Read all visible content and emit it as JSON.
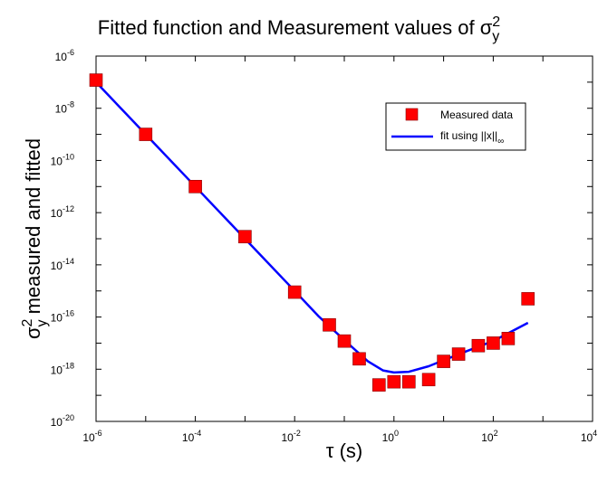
{
  "chart_data": {
    "type": "scatter",
    "title": "Fitted function and Measurement values of σ",
    "title_symbol_sup": "2",
    "title_symbol_sub": "y",
    "xlabel": "τ (s)",
    "ylabel_prefix": "σ",
    "ylabel_sup": "2",
    "ylabel_sub": "y",
    "ylabel_suffix": " measured and fitted",
    "x_scale": "log",
    "y_scale": "log",
    "xlim_exp": [
      -6,
      4
    ],
    "ylim_exp": [
      -20,
      -6
    ],
    "x_ticks": [
      {
        "base": "10",
        "exp": "-6"
      },
      {
        "base": "10",
        "exp": "-4"
      },
      {
        "base": "10",
        "exp": "-2"
      },
      {
        "base": "10",
        "exp": "0"
      },
      {
        "base": "10",
        "exp": "2"
      },
      {
        "base": "10",
        "exp": "4"
      }
    ],
    "y_ticks": [
      {
        "base": "10",
        "exp": "-6"
      },
      {
        "base": "10",
        "exp": "-8"
      },
      {
        "base": "10",
        "exp": "-10"
      },
      {
        "base": "10",
        "exp": "-12"
      },
      {
        "base": "10",
        "exp": "-14"
      },
      {
        "base": "10",
        "exp": "-16"
      },
      {
        "base": "10",
        "exp": "-18"
      },
      {
        "base": "10",
        "exp": "-20"
      }
    ],
    "grid": false,
    "legend_position": "top-right",
    "series": [
      {
        "name": "Measured data",
        "kind": "markers",
        "marker": "square",
        "color": "#ff0000",
        "x": [
          1e-06,
          1e-05,
          0.0001,
          0.001,
          0.01,
          0.05,
          0.1,
          0.2,
          0.5,
          1,
          2,
          5,
          10,
          20,
          50,
          100,
          200,
          500
        ],
        "y": [
          1.2e-07,
          1e-09,
          1e-11,
          1.2e-13,
          9e-16,
          5e-17,
          1.2e-17,
          2.5e-18,
          2.5e-19,
          3.3e-19,
          3.3e-19,
          4e-19,
          2e-18,
          3.8e-18,
          8e-18,
          1e-17,
          1.5e-17,
          5e-16
        ]
      },
      {
        "name": "fit using ||x||∞",
        "legend_main": "fit using ||x||",
        "legend_sub": "∞",
        "kind": "line",
        "color": "#0000ff",
        "x": [
          1e-06,
          1e-05,
          0.0001,
          0.001,
          0.01,
          0.03,
          0.1,
          0.3,
          0.6,
          1,
          2,
          5,
          10,
          30,
          100,
          500
        ],
        "y": [
          1e-07,
          1e-09,
          1e-11,
          1e-13,
          1e-15,
          1.1e-16,
          1.3e-17,
          2e-18,
          9e-19,
          7.5e-19,
          8e-19,
          1.3e-18,
          2.2e-18,
          5e-18,
          1.2e-17,
          6e-17
        ]
      }
    ]
  }
}
